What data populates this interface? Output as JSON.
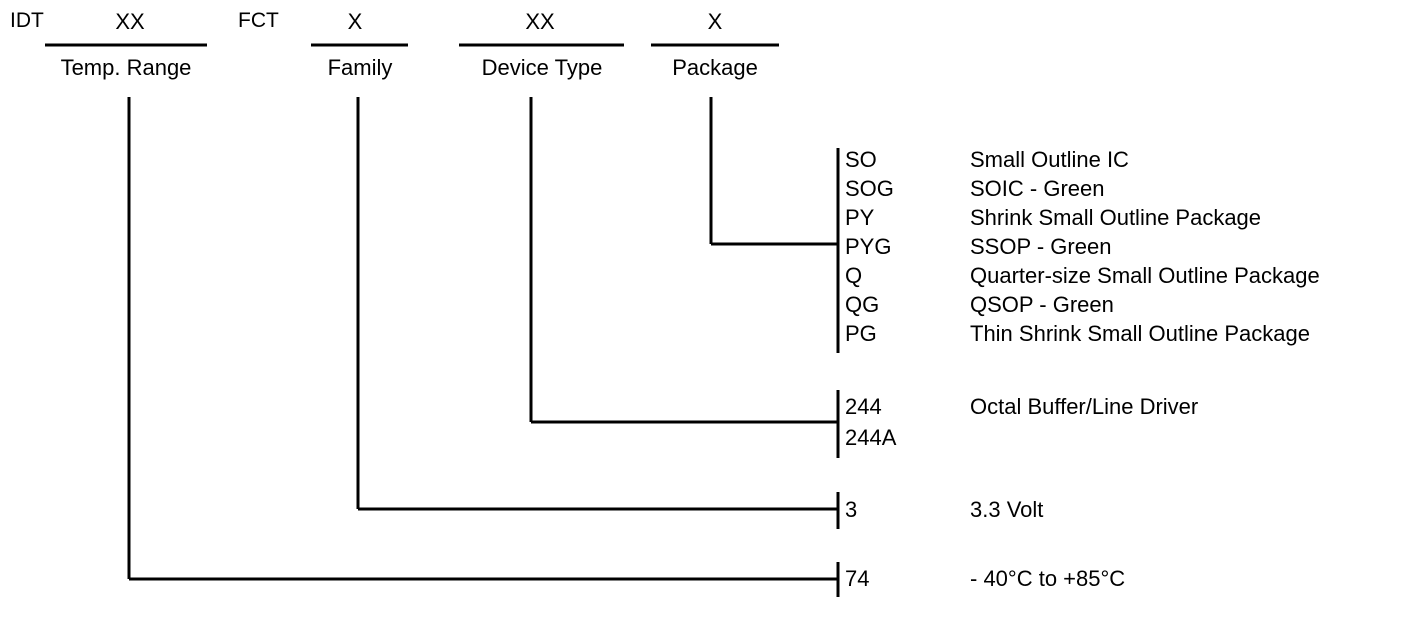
{
  "header": {
    "prefix": "IDT",
    "temp_code": "XX",
    "mid": "FCT",
    "family_code": "X",
    "device_code": "XX",
    "package_code": "X"
  },
  "fields": {
    "temp_label": "Temp. Range",
    "family_label": "Family",
    "device_label": "Device Type",
    "package_label": "Package"
  },
  "packages": [
    {
      "code": "SO",
      "desc": "Small Outline IC"
    },
    {
      "code": "SOG",
      "desc": "SOIC - Green"
    },
    {
      "code": "PY",
      "desc": "Shrink Small Outline Package"
    },
    {
      "code": "PYG",
      "desc": "SSOP - Green"
    },
    {
      "code": "Q",
      "desc": "Quarter-size Small Outline Package"
    },
    {
      "code": "QG",
      "desc": "QSOP - Green"
    },
    {
      "code": "PG",
      "desc": "Thin Shrink Small Outline Package"
    }
  ],
  "devices": [
    {
      "code": "244",
      "desc": "Octal Buffer/Line Driver"
    },
    {
      "code": "244A",
      "desc": ""
    }
  ],
  "family": {
    "code": "3",
    "desc": "3.3 Volt"
  },
  "temp": {
    "code": "74",
    "desc": "- 40°C to +85°C"
  }
}
